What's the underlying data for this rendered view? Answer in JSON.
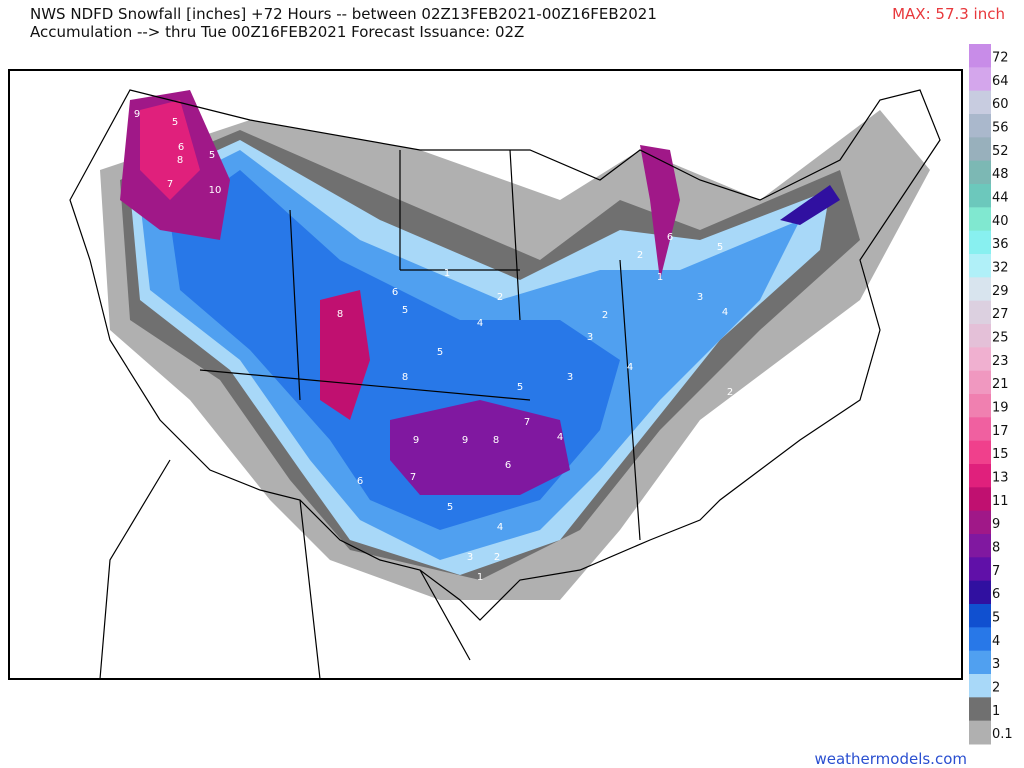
{
  "header": {
    "line1": "NWS NDFD Snowfall [inches] +72 Hours -- between 02Z13FEB2021-00Z16FEB2021",
    "line2": "Accumulation --> thru Tue 00Z16FEB2021   Forecast Issuance: 02Z",
    "max": "MAX: 57.3 inch"
  },
  "colorbar": {
    "labels": [
      "72",
      "64",
      "60",
      "56",
      "52",
      "48",
      "44",
      "40",
      "36",
      "32",
      "29",
      "27",
      "25",
      "23",
      "21",
      "19",
      "17",
      "15",
      "13",
      "11",
      "9",
      "8",
      "7",
      "6",
      "5",
      "4",
      "3",
      "2",
      "1",
      "0.1"
    ],
    "colors": [
      "#c88ce8",
      "#d4a6ec",
      "#c8cce0",
      "#aab8cc",
      "#98b0bc",
      "#7cb8b4",
      "#6cc8bc",
      "#80e8d0",
      "#88f0f0",
      "#b0f0f8",
      "#d8e4ee",
      "#dcd0e0",
      "#e4c0d8",
      "#f0b0d0",
      "#f098c0",
      "#f080b0",
      "#f060a0",
      "#f0408c",
      "#e0207c",
      "#c01070",
      "#a01888",
      "#8018a0",
      "#6010a8",
      "#3010a0",
      "#1050d0",
      "#2878e8",
      "#50a0f0",
      "#a8d8f8",
      "#707070",
      "#b0b0b0"
    ]
  },
  "map_labels": [
    "9",
    "5",
    "8",
    "7",
    "10",
    "6",
    "5",
    "8",
    "6",
    "5",
    "9",
    "9",
    "8",
    "7",
    "8",
    "6",
    "7",
    "6",
    "5",
    "4",
    "5",
    "4",
    "3",
    "2",
    "2",
    "1",
    "3",
    "4",
    "5",
    "6",
    "4",
    "3",
    "2",
    "1",
    "5",
    "4",
    "3",
    "2",
    "1",
    "2"
  ],
  "footer": "weathermodels.com"
}
